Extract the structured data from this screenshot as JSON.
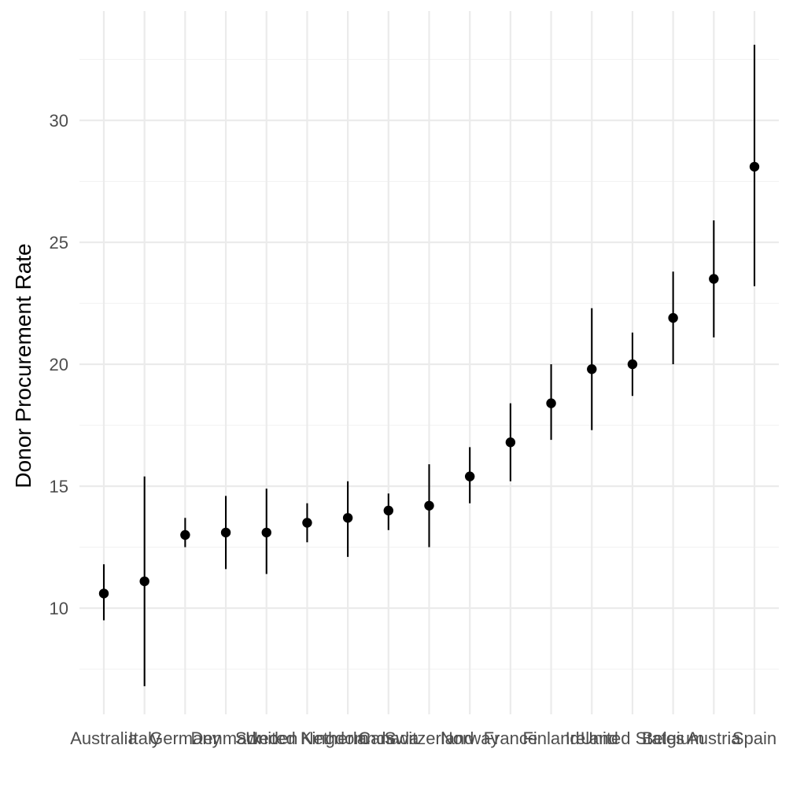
{
  "chart_data": {
    "type": "scatter",
    "subtype": "pointrange",
    "title": "",
    "xlabel": "",
    "ylabel": "Donor Procurement Rate",
    "ylim": [
      6.4,
      33.6
    ],
    "yticks": [
      10,
      15,
      20,
      25,
      30
    ],
    "grid": true,
    "legend": "none",
    "colors": {
      "point": "#000000",
      "errorbar": "#000000",
      "grid": "#ebebeb",
      "tick_text": "#4d4d4d"
    },
    "categories": [
      "Australia",
      "Italy",
      "Germany",
      "Denmark",
      "Sweden",
      "United Kingdom",
      "Netherlands",
      "Canada",
      "Switzerland",
      "Norway",
      "France",
      "Finland",
      "Ireland",
      "United States",
      "Belgium",
      "Austria",
      "Spain"
    ],
    "series": [
      {
        "values": [
          10.6,
          11.1,
          13.0,
          13.1,
          13.1,
          13.5,
          13.7,
          14.0,
          14.2,
          15.4,
          16.8,
          18.4,
          19.8,
          20.0,
          21.9,
          23.5,
          28.1
        ],
        "lower": [
          9.5,
          6.8,
          12.5,
          11.6,
          11.4,
          12.7,
          12.1,
          13.2,
          12.5,
          14.3,
          15.2,
          16.9,
          17.3,
          18.7,
          20.0,
          21.1,
          23.2
        ],
        "upper": [
          11.8,
          15.4,
          13.7,
          14.6,
          14.9,
          14.3,
          15.2,
          14.7,
          15.9,
          16.6,
          18.4,
          20.0,
          22.3,
          21.3,
          23.8,
          25.9,
          33.1
        ]
      }
    ]
  }
}
